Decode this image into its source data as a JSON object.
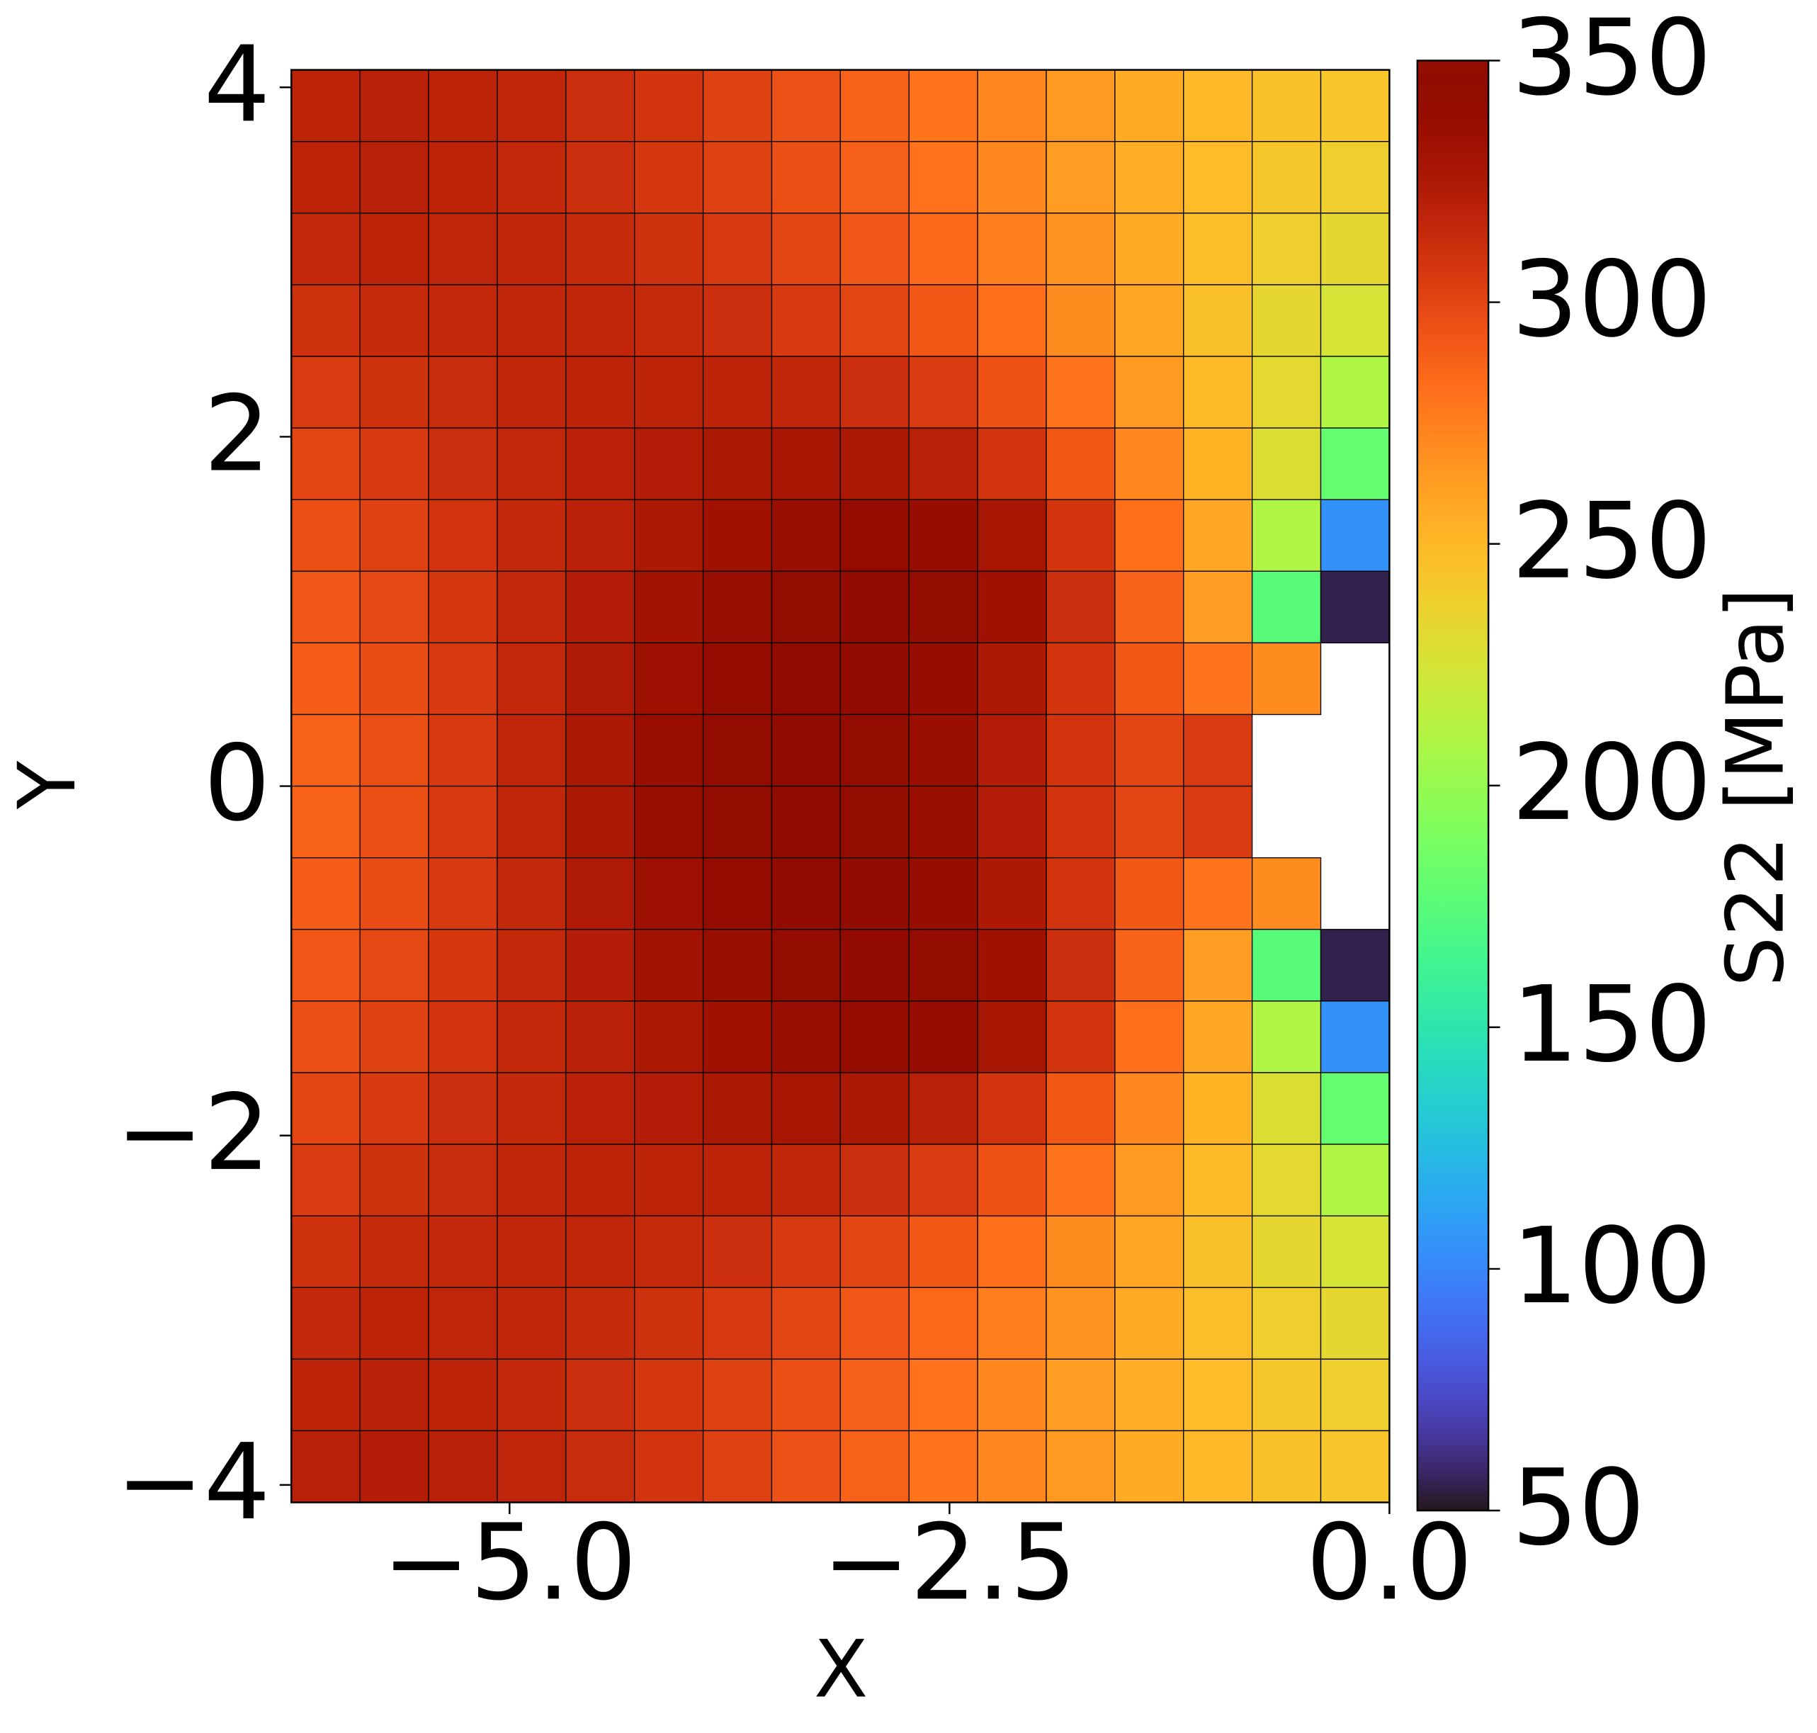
{
  "chart_data": {
    "type": "heatmap",
    "x_label": "X",
    "y_label": "Y",
    "colorbar_label": "S22 [MPa]",
    "colormap": "turbo",
    "clim": [
      50,
      350
    ],
    "cticks": [
      50,
      100,
      150,
      200,
      250,
      300,
      350
    ],
    "xlim": [
      -6.24,
      0
    ],
    "ylim": [
      -4.1,
      4.1
    ],
    "xticks": [
      {
        "value": -5,
        "label": "−5.0"
      },
      {
        "value": -2.5,
        "label": "−2.5"
      },
      {
        "value": 0,
        "label": "0.0"
      }
    ],
    "yticks": [
      {
        "value": -4,
        "label": "−4"
      },
      {
        "value": -2,
        "label": "−2"
      },
      0,
      2,
      4
    ],
    "x_edges": [
      -6.24,
      -5.85,
      -5.46,
      -5.07,
      -4.68,
      -4.29,
      -3.9,
      -3.51,
      -3.12,
      -2.73,
      -2.34,
      -1.95,
      -1.56,
      -1.17,
      -0.78,
      -0.39,
      0
    ],
    "y_edges": [
      4.1,
      3.69,
      3.28,
      2.87,
      2.46,
      2.05,
      1.64,
      1.23,
      0.82,
      0.41,
      0,
      -0.41,
      -0.82,
      -1.23,
      -1.64,
      -2.05,
      -2.46,
      -2.87,
      -3.28,
      -3.69,
      -4.1
    ],
    "values": [
      [
        318,
        320,
        318,
        316,
        312,
        308,
        302,
        295,
        288,
        280,
        272,
        264,
        256,
        250,
        245,
        243
      ],
      [
        318,
        320,
        318,
        315,
        312,
        307,
        302,
        296,
        289,
        281,
        272,
        263,
        255,
        248,
        242,
        238
      ],
      [
        315,
        318,
        317,
        316,
        314,
        310,
        306,
        300,
        293,
        285,
        276,
        266,
        256,
        247,
        238,
        233
      ],
      [
        310,
        314,
        315,
        316,
        316,
        314,
        311,
        306,
        300,
        292,
        282,
        270,
        258,
        246,
        233,
        225
      ],
      [
        305,
        310,
        313,
        316,
        318,
        318,
        318,
        316,
        312,
        305,
        294,
        280,
        264,
        249,
        232,
        210
      ],
      [
        300,
        306,
        311,
        315,
        319,
        322,
        326,
        328,
        326,
        320,
        308,
        292,
        272,
        252,
        228,
        180
      ],
      [
        296,
        302,
        309,
        315,
        320,
        326,
        332,
        337,
        340,
        338,
        328,
        308,
        282,
        258,
        210,
        105
      ],
      [
        293,
        299,
        307,
        315,
        322,
        330,
        337,
        342,
        344,
        342,
        332,
        312,
        288,
        262,
        175,
        55
      ],
      [
        290,
        297,
        306,
        315,
        324,
        333,
        340,
        345,
        344,
        338,
        325,
        308,
        292,
        280,
        270,
        null
      ],
      [
        288,
        296,
        306,
        316,
        326,
        336,
        343,
        346,
        343,
        335,
        322,
        308,
        300,
        305,
        null,
        null
      ],
      [
        288,
        296,
        306,
        316,
        326,
        336,
        343,
        346,
        343,
        335,
        322,
        308,
        300,
        305,
        null,
        null
      ],
      [
        290,
        297,
        306,
        315,
        324,
        333,
        340,
        345,
        344,
        338,
        325,
        308,
        292,
        280,
        270,
        null
      ],
      [
        293,
        299,
        307,
        315,
        322,
        330,
        337,
        342,
        344,
        342,
        332,
        312,
        288,
        262,
        175,
        55
      ],
      [
        296,
        302,
        309,
        315,
        320,
        326,
        332,
        337,
        340,
        338,
        328,
        308,
        282,
        258,
        210,
        105
      ],
      [
        300,
        306,
        311,
        315,
        319,
        322,
        326,
        328,
        326,
        320,
        308,
        292,
        272,
        252,
        228,
        180
      ],
      [
        305,
        310,
        313,
        316,
        318,
        318,
        318,
        316,
        312,
        305,
        294,
        280,
        264,
        249,
        232,
        210
      ],
      [
        310,
        314,
        315,
        316,
        316,
        314,
        311,
        306,
        300,
        292,
        282,
        270,
        258,
        246,
        233,
        225
      ],
      [
        315,
        318,
        317,
        316,
        314,
        310,
        306,
        300,
        293,
        285,
        276,
        266,
        256,
        247,
        238,
        233
      ],
      [
        318,
        320,
        318,
        315,
        312,
        307,
        302,
        296,
        289,
        281,
        272,
        263,
        255,
        248,
        242,
        238
      ],
      [
        320,
        322,
        320,
        317,
        313,
        308,
        302,
        295,
        288,
        280,
        272,
        264,
        256,
        250,
        245,
        243
      ]
    ]
  }
}
